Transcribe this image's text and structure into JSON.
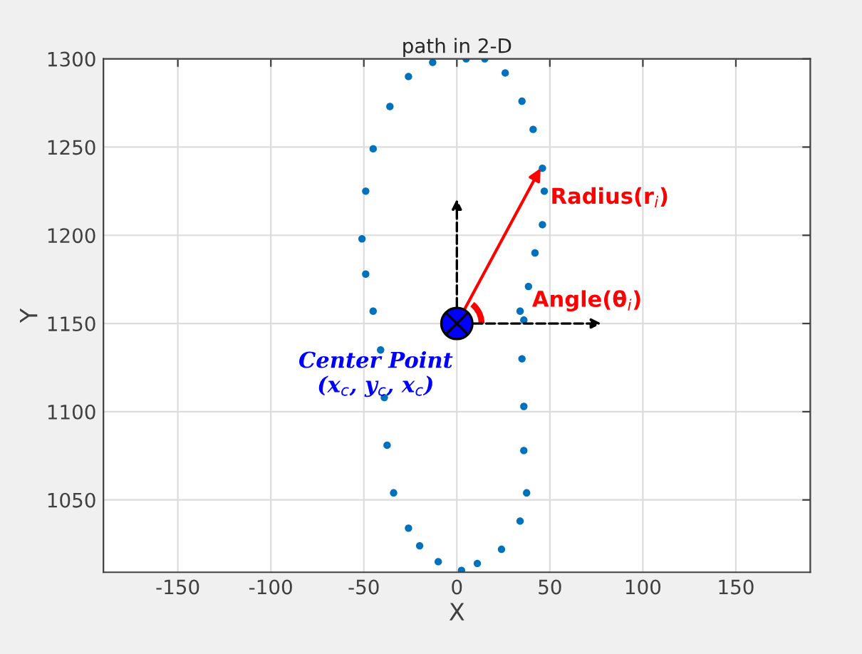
{
  "chart_data": {
    "type": "scatter",
    "title": "path in 2-D",
    "xlabel": "X",
    "ylabel": "Y",
    "series": [
      {
        "color": "#0072bd",
        "x": [
          5,
          15,
          26,
          35,
          41,
          46,
          47,
          46,
          42,
          38.5,
          36,
          34,
          35,
          36,
          36,
          37.5,
          34,
          24,
          11,
          2.5,
          -10,
          -20,
          -26,
          -34,
          -37.5,
          -39,
          -41,
          -45,
          -49,
          -51,
          -49,
          -45,
          -36,
          -26,
          -13
        ],
        "values": [
          1300,
          1300,
          1292,
          1276,
          1260,
          1238,
          1225,
          1206,
          1190,
          1171,
          1152,
          1157,
          1130,
          1103,
          1078,
          1054,
          1038,
          1022,
          1014,
          1010,
          1015,
          1024,
          1034,
          1054,
          1081,
          1108,
          1135,
          1157,
          1178,
          1198,
          1225,
          1249,
          1273,
          1290,
          1298
        ]
      }
    ],
    "xlim": [
      -190,
      190
    ],
    "ylim": [
      1009,
      1300
    ],
    "xticks": [
      -150,
      -100,
      -50,
      0,
      50,
      100,
      150
    ],
    "yticks": [
      1050,
      1100,
      1150,
      1200,
      1250,
      1300
    ],
    "grid": true,
    "marker": "circle",
    "annotations": [
      {
        "text": "Radius(r$_{i}$)",
        "x": 46,
        "y": 1240
      },
      {
        "text": "Angle(θ$_{i}$)",
        "x": 0,
        "y": 1150
      },
      "Center Point\n(x$_{c}$, y$_{c}$, x$_{c}$)"
    ]
  }
}
